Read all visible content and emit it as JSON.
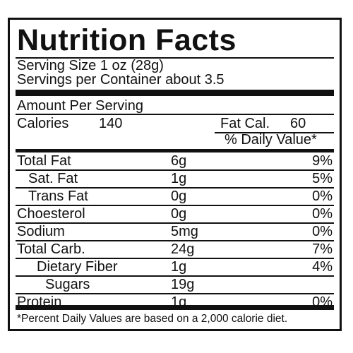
{
  "title": "Nutrition Facts",
  "serving_size": "Serving Size 1 oz (28g)",
  "servings_per_container": "Servings per Container about 3.5",
  "amount_per_serving": "Amount Per Serving",
  "calories_label": "Calories",
  "calories_value": "140",
  "fat_cal_label": "Fat Cal.",
  "fat_cal_value": "60",
  "daily_value_header": "% Daily Value*",
  "nutrients": [
    {
      "label": "Total Fat",
      "amount": "6g",
      "dv": "9%"
    },
    {
      "label": "Sat. Fat",
      "amount": "1g",
      "dv": "5%"
    },
    {
      "label": "Trans Fat",
      "amount": "0g",
      "dv": "0%"
    },
    {
      "label": "Choesterol",
      "amount": "0g",
      "dv": "0%"
    },
    {
      "label": "Sodium",
      "amount": "5mg",
      "dv": "0%"
    },
    {
      "label": "Total Carb.",
      "amount": "24g",
      "dv": "7%"
    },
    {
      "label": "Dietary Fiber",
      "amount": "1g",
      "dv": "4%"
    },
    {
      "label": "Sugars",
      "amount": "19g",
      "dv": ""
    },
    {
      "label": "Protein",
      "amount": "1g",
      "dv": "0%"
    }
  ],
  "footnote": "*Percent Daily Values are based on a 2,000 calorie diet."
}
